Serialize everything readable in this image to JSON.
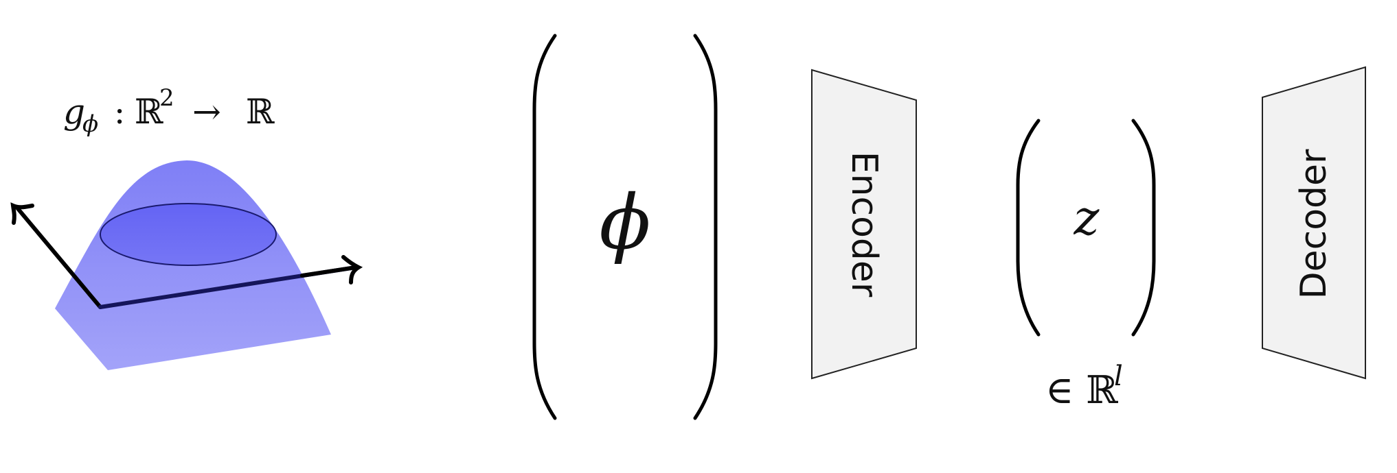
{
  "left_panel": {
    "function_label": {
      "g": "g",
      "phi_sub": "ϕ",
      "colon": ":",
      "domain": "ℝ",
      "domain_exp": "2",
      "arrow": "→",
      "codomain": "ℝ"
    }
  },
  "parameter_vector": {
    "symbol": "ϕ"
  },
  "encoder": {
    "label": "Encoder"
  },
  "latent": {
    "symbol": "z",
    "space": "∈ ℝ",
    "space_exp": "l"
  },
  "decoder": {
    "label": "Decoder"
  },
  "colors": {
    "surface": "#8a8af7",
    "ellipse_fill": "#6b6bf5",
    "ellipse_stroke": "#1a1a6e",
    "axis": "#000000",
    "axis_dark": "#15155a",
    "block_fill": "#f2f2f2",
    "block_stroke": "#222222"
  }
}
